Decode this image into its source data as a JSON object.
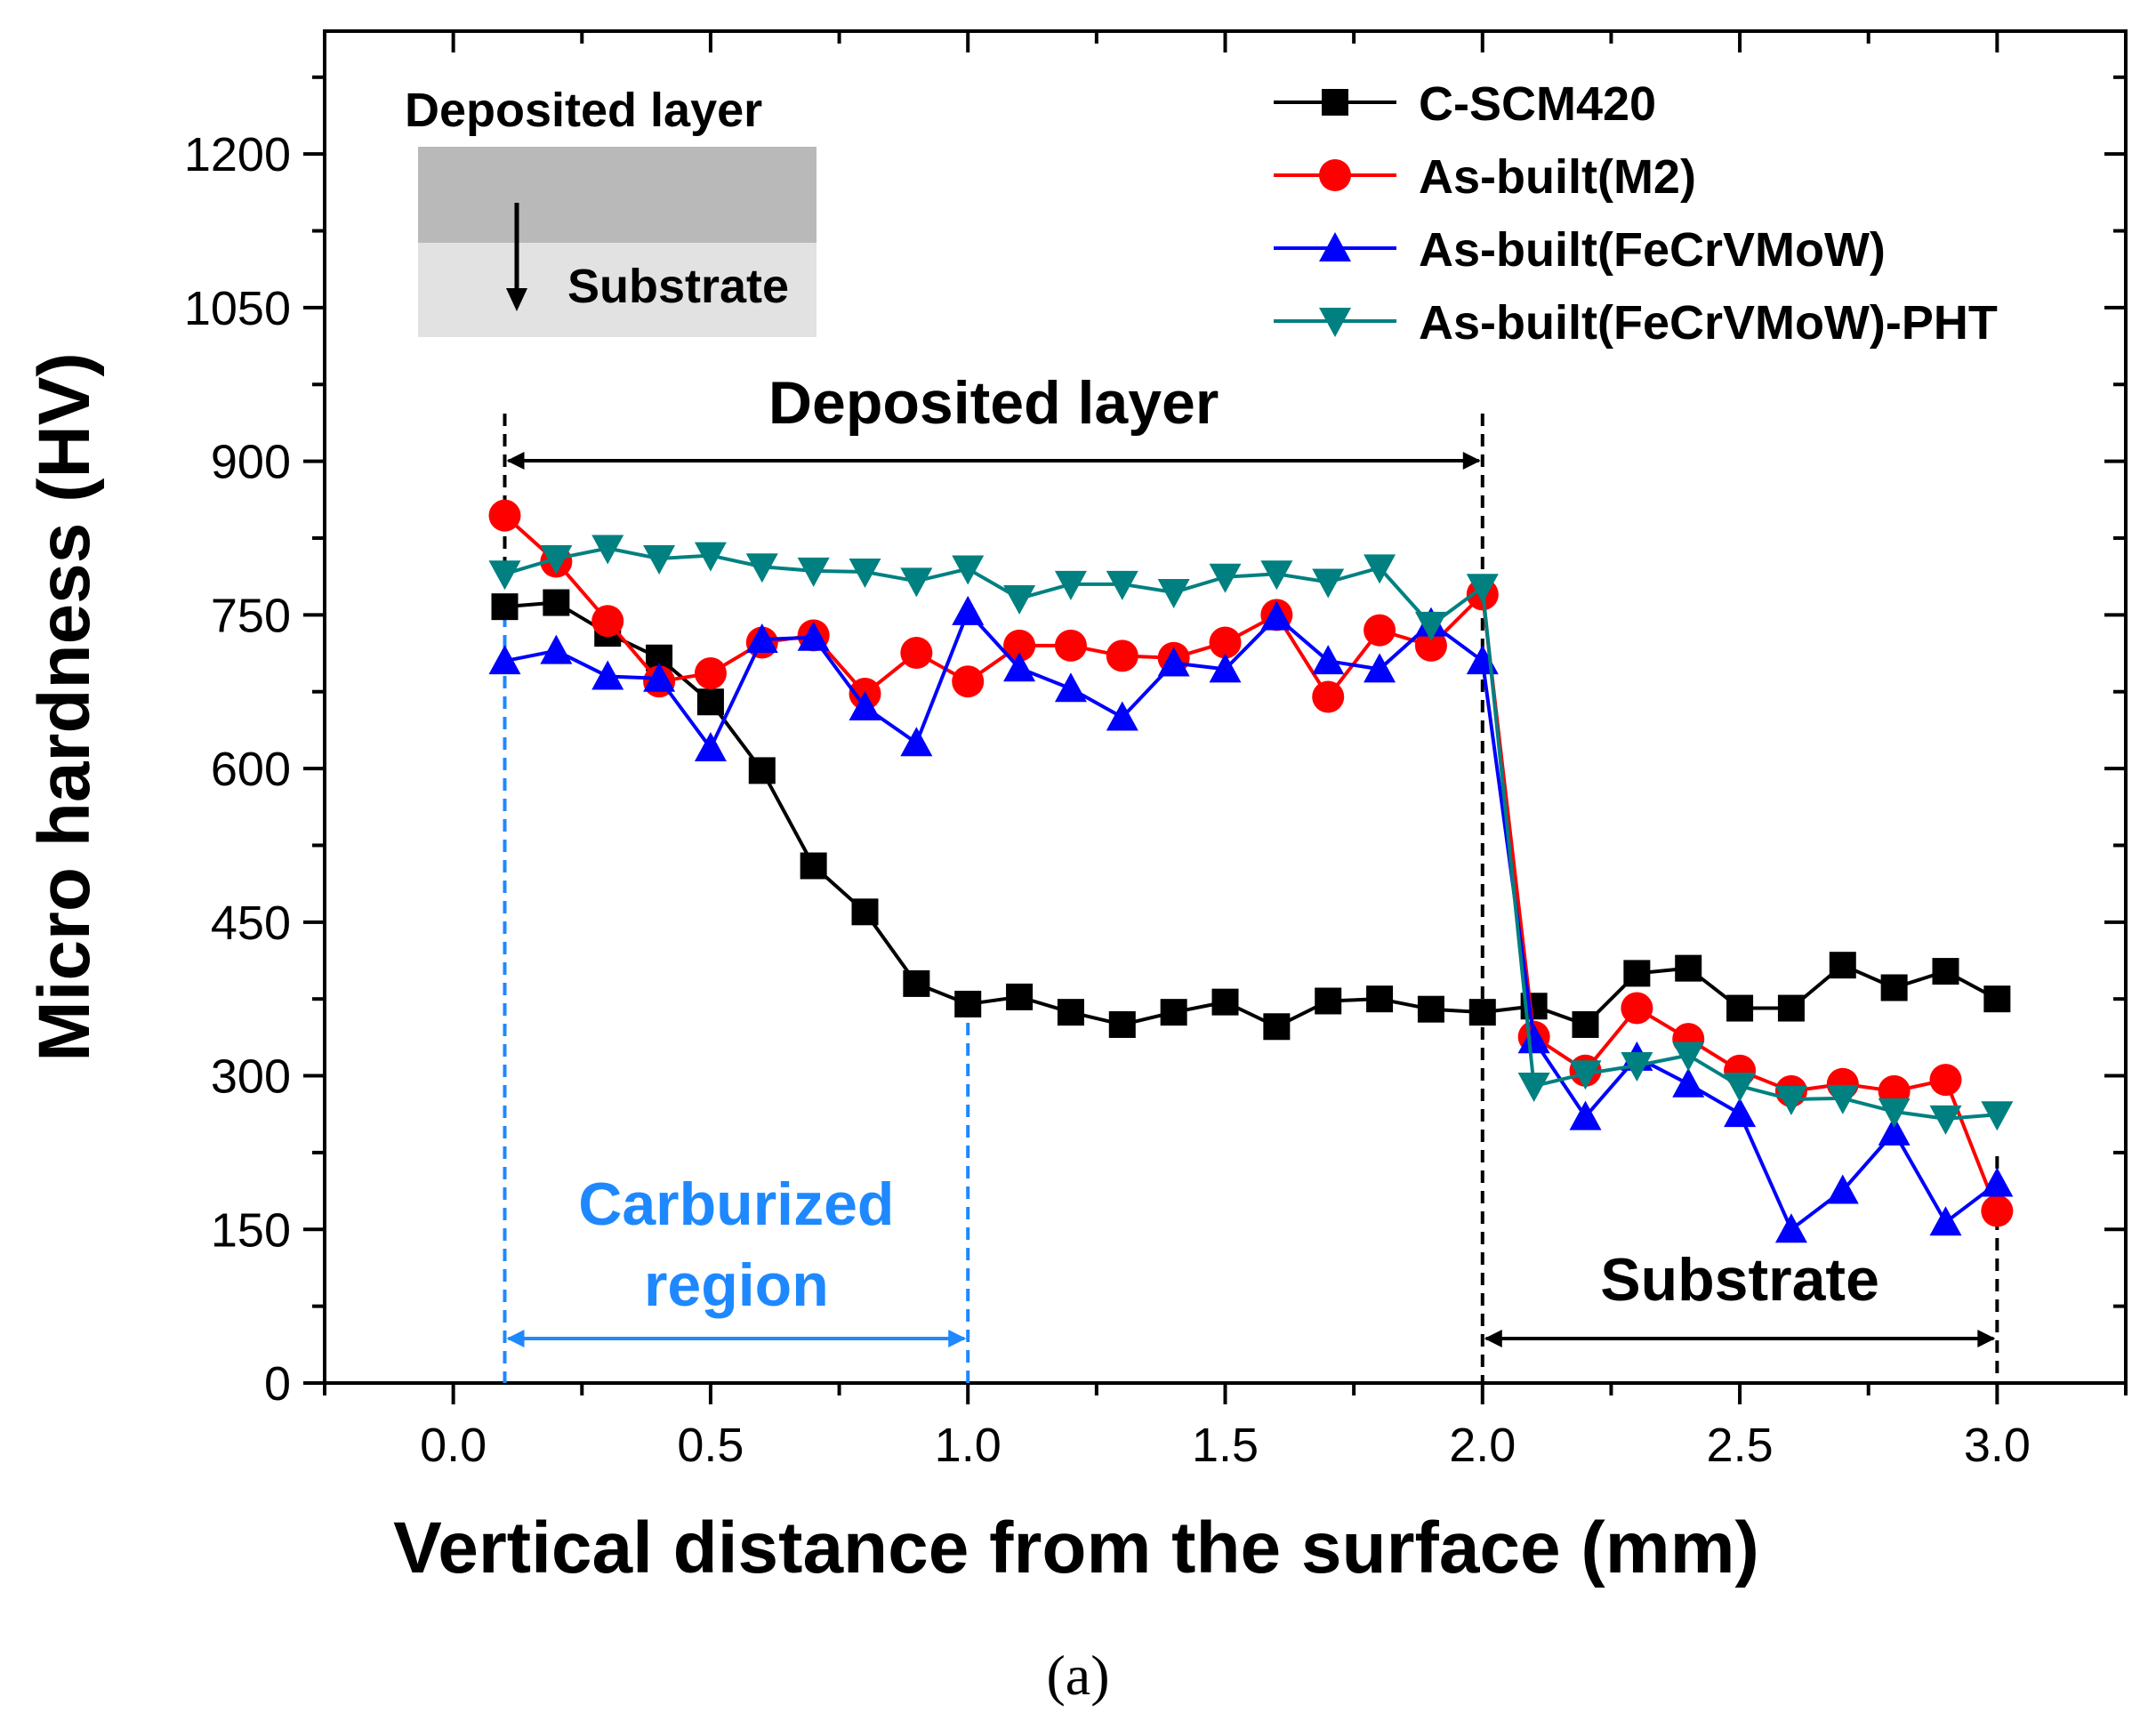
{
  "chart_data": {
    "type": "line",
    "title": "",
    "xlabel": "Vertical distance from the surface (mm)",
    "ylabel": "Micro hardness (HV)",
    "xlim": [
      -0.25,
      3.25
    ],
    "ylim": [
      0,
      1320
    ],
    "xticks": [
      0.0,
      0.5,
      1.0,
      1.5,
      2.0,
      2.5,
      3.0
    ],
    "xtick_labels": [
      "0.0",
      "0.5",
      "1.0",
      "1.5",
      "2.0",
      "2.5",
      "3.0"
    ],
    "yticks": [
      0,
      150,
      300,
      450,
      600,
      750,
      900,
      1050,
      1200
    ],
    "ytick_labels": [
      "0",
      "150",
      "300",
      "450",
      "600",
      "750",
      "900",
      "1050",
      "1200"
    ],
    "grid": false,
    "legend_position": "top-right",
    "x": [
      0.1,
      0.2,
      0.3,
      0.4,
      0.5,
      0.6,
      0.7,
      0.8,
      0.9,
      1.0,
      1.1,
      1.2,
      1.3,
      1.4,
      1.5,
      1.6,
      1.7,
      1.8,
      1.9,
      2.0,
      2.1,
      2.2,
      2.3,
      2.4,
      2.5,
      2.6,
      2.7,
      2.8,
      2.9,
      3.0
    ],
    "series": [
      {
        "name": "C-SCM420",
        "color": "#000000",
        "marker": "square",
        "values": [
          758,
          762,
          732,
          708,
          665,
          598,
          505,
          460,
          390,
          370,
          377,
          362,
          350,
          362,
          372,
          348,
          373,
          375,
          365,
          362,
          368,
          350,
          400,
          405,
          366,
          366,
          408,
          386,
          402,
          375
        ]
      },
      {
        "name": "As-built(M2)",
        "color": "#ff0000",
        "marker": "circle",
        "values": [
          847,
          802,
          744,
          685,
          693,
          723,
          730,
          673,
          713,
          685,
          720,
          720,
          710,
          708,
          723,
          750,
          670,
          735,
          720,
          770,
          338,
          305,
          366,
          336,
          305,
          285,
          292,
          285,
          296,
          168
        ]
      },
      {
        "name": "As-built(FeCrVMoW)",
        "color": "#0000ff",
        "marker": "triangle-up",
        "values": [
          705,
          715,
          690,
          688,
          620,
          726,
          728,
          660,
          625,
          753,
          698,
          678,
          650,
          703,
          697,
          748,
          705,
          697,
          742,
          705,
          335,
          260,
          318,
          292,
          263,
          150,
          188,
          245,
          157,
          195
        ]
      },
      {
        "name": "As-built(FeCrVMoW)-PHT",
        "color": "#008080",
        "marker": "triangle-down",
        "values": [
          790,
          805,
          815,
          805,
          808,
          797,
          793,
          792,
          783,
          795,
          766,
          780,
          780,
          772,
          787,
          790,
          782,
          796,
          740,
          777,
          290,
          302,
          310,
          320,
          290,
          277,
          278,
          265,
          258,
          262
        ]
      }
    ],
    "annotations": {
      "deposited_layer_span": {
        "label": "Deposited layer",
        "x_start": 0.1,
        "x_end": 2.0
      },
      "substrate_span": {
        "label": "Substrate",
        "x_start": 2.0,
        "x_end": 3.0
      },
      "carburized_span": {
        "line1": "Carburized",
        "line2": "region",
        "x_start": 0.1,
        "x_end": 1.0,
        "color": "#1e88ff"
      }
    },
    "inset": {
      "top_label": "Deposited layer",
      "bottom_label": "Substrate"
    },
    "panel_label": "(a)"
  }
}
